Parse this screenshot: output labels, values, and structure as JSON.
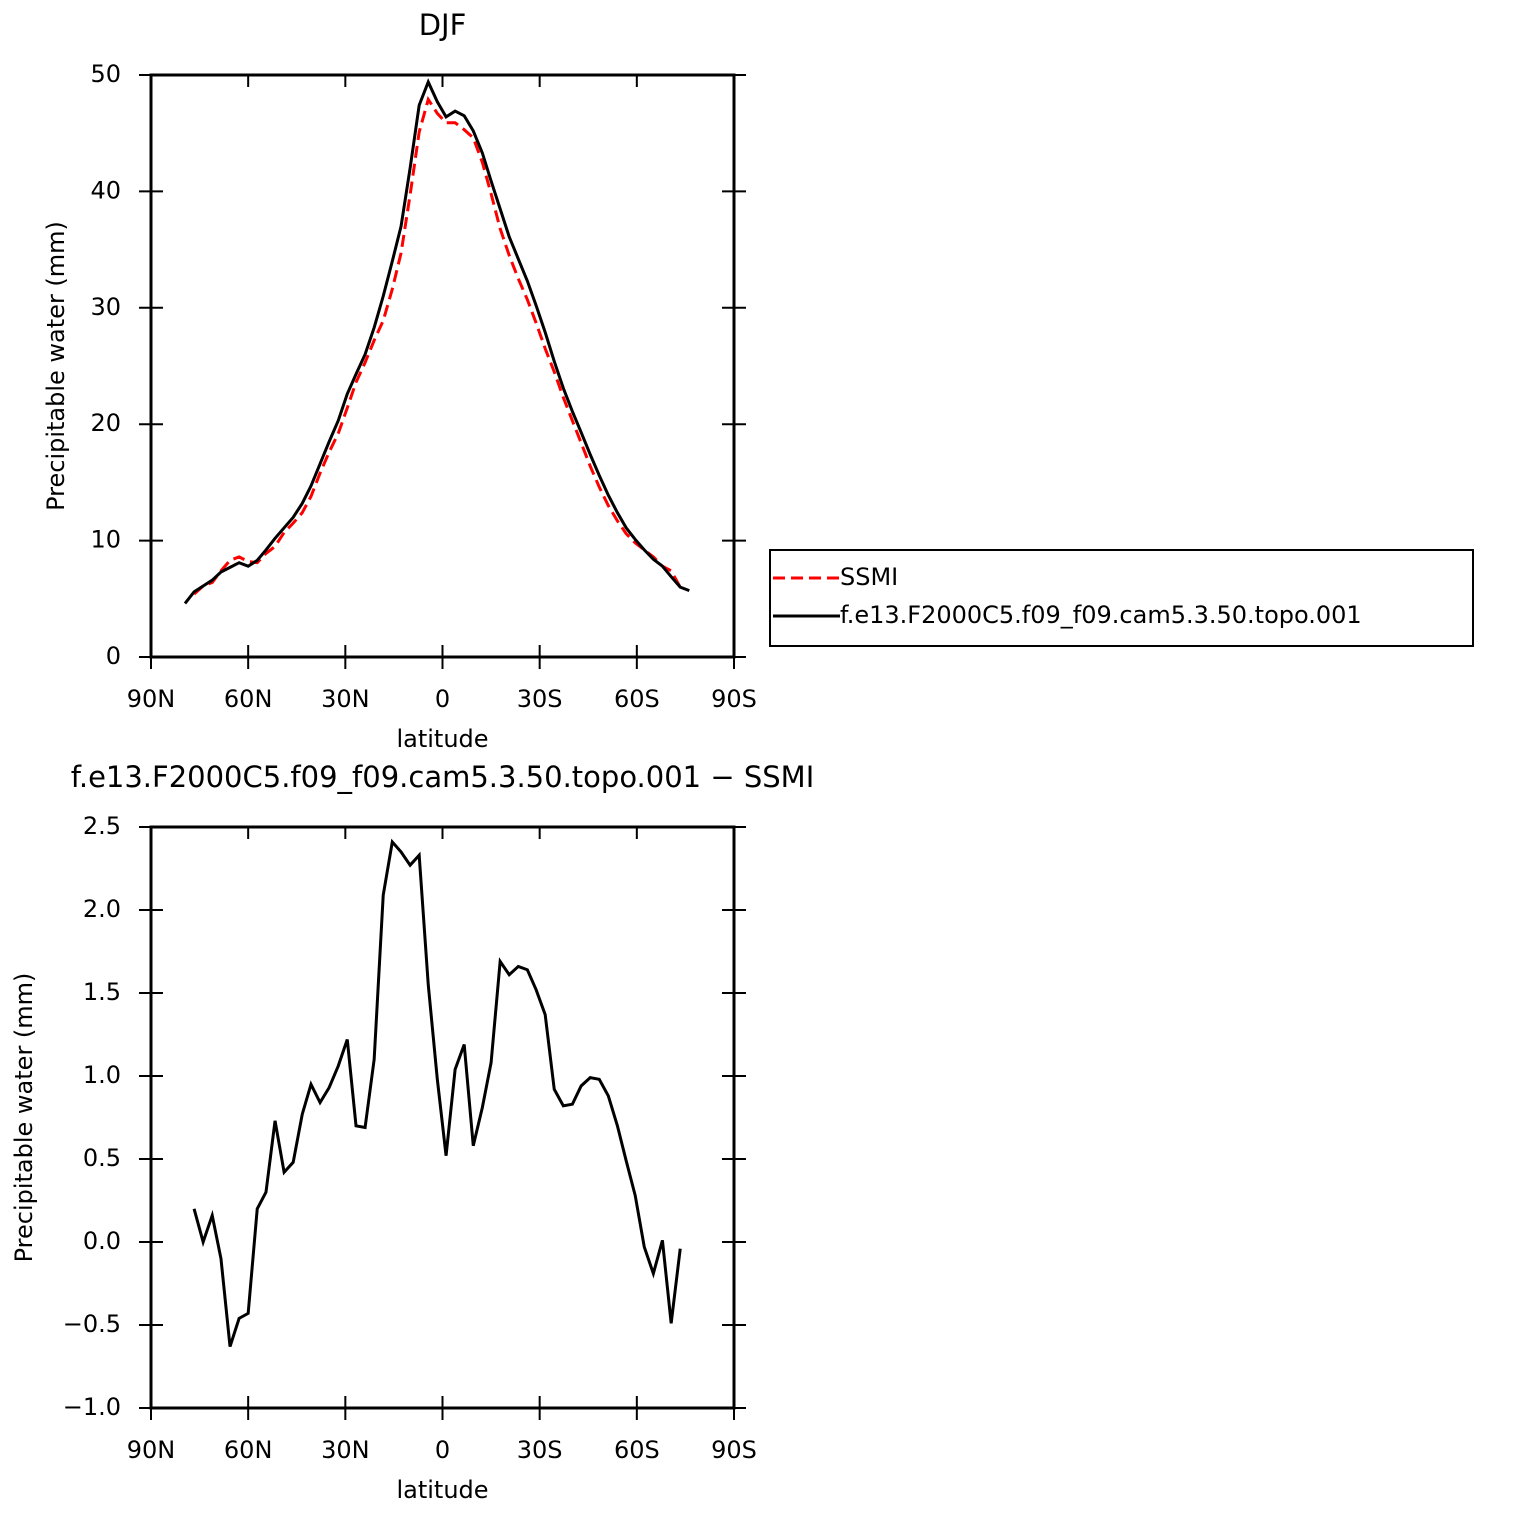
{
  "chart_data": [
    {
      "type": "line",
      "title": "DJF",
      "xlabel": "latitude",
      "ylabel": "Precipitable water (mm)",
      "xlim": [
        90,
        -90
      ],
      "xticks": [
        {
          "value": 90,
          "label": "90N"
        },
        {
          "value": 60,
          "label": "60N"
        },
        {
          "value": 30,
          "label": "30N"
        },
        0,
        {
          "value": -30,
          "label": "30S"
        },
        {
          "value": -60,
          "label": "60S"
        },
        {
          "value": -90,
          "label": "90S"
        }
      ],
      "ylim": [
        0,
        50
      ],
      "yticks": [
        0,
        10,
        20,
        30,
        40,
        50
      ],
      "legend": "right",
      "x": [
        79.5,
        76.7,
        73.9,
        71.1,
        68.4,
        65.6,
        62.8,
        60.0,
        57.2,
        54.5,
        51.7,
        48.9,
        46.1,
        43.3,
        40.6,
        37.8,
        35.0,
        32.2,
        29.4,
        26.7,
        23.9,
        21.1,
        18.3,
        15.5,
        12.8,
        10.0,
        7.2,
        4.4,
        1.6,
        -1.1,
        -3.9,
        -6.7,
        -9.5,
        -12.3,
        -15.0,
        -17.8,
        -20.6,
        -23.4,
        -26.2,
        -28.9,
        -31.7,
        -34.5,
        -37.3,
        -40.1,
        -42.8,
        -45.6,
        -48.4,
        -51.2,
        -54.0,
        -56.7,
        -59.5,
        -62.3,
        -65.1,
        -67.9,
        -70.6,
        -73.4,
        -76.2
      ],
      "series": [
        {
          "name": "SSMI",
          "color": "#ff0000",
          "dash": true,
          "values": [
            null,
            5.4,
            6.1,
            6.4,
            7.4,
            8.3,
            8.6,
            8.2,
            8.1,
            8.9,
            9.5,
            10.7,
            11.5,
            12.4,
            13.8,
            15.8,
            17.6,
            19.2,
            21.4,
            23.6,
            25.3,
            27.2,
            28.9,
            31.6,
            34.7,
            39.7,
            45.1,
            47.9,
            46.7,
            45.9,
            45.9,
            45.3,
            44.6,
            42.5,
            39.8,
            36.8,
            34.5,
            32.5,
            30.7,
            28.7,
            26.5,
            24.5,
            22.3,
            20.3,
            18.4,
            16.4,
            14.6,
            13.0,
            11.7,
            10.6,
            9.8,
            9.2,
            8.6,
            7.8,
            7.4,
            6.0,
            null
          ]
        },
        {
          "name": "f.e13.F2000C5.f09_f09.cam5.3.50.topo.001",
          "color": "#000000",
          "dash": false,
          "values": [
            4.6,
            5.6,
            6.1,
            6.6,
            7.3,
            7.7,
            8.1,
            7.8,
            8.3,
            9.2,
            10.2,
            11.1,
            12.0,
            13.2,
            14.7,
            16.6,
            18.5,
            20.3,
            22.6,
            24.3,
            26.0,
            28.3,
            31.0,
            34.0,
            37.0,
            42.0,
            47.4,
            49.4,
            47.7,
            46.4,
            46.9,
            46.5,
            45.2,
            43.3,
            40.9,
            38.5,
            36.1,
            34.2,
            32.3,
            30.2,
            27.9,
            25.4,
            23.1,
            21.1,
            19.3,
            17.4,
            15.6,
            13.9,
            12.4,
            11.1,
            10.1,
            9.2,
            8.4,
            7.8,
            6.9,
            6.0,
            5.7
          ]
        }
      ]
    },
    {
      "type": "line",
      "title": "f.e13.F2000C5.f09_f09.cam5.3.50.topo.001 − SSMI",
      "xlabel": "latitude",
      "ylabel": "Precipitable water (mm)",
      "xlim": [
        90,
        -90
      ],
      "xticks": [
        {
          "value": 90,
          "label": "90N"
        },
        {
          "value": 60,
          "label": "60N"
        },
        {
          "value": 30,
          "label": "30N"
        },
        0,
        {
          "value": -30,
          "label": "30S"
        },
        {
          "value": -60,
          "label": "60S"
        },
        {
          "value": -90,
          "label": "90S"
        }
      ],
      "ylim": [
        -1,
        2.5
      ],
      "yticks": [
        {
          "value": -1,
          "label": "−1.0"
        },
        {
          "value": -0.5,
          "label": "−0.5"
        },
        {
          "value": 0,
          "label": "0.0"
        },
        0.5,
        {
          "value": 1,
          "label": "1.0"
        },
        1.5,
        {
          "value": 2,
          "label": "2.0"
        },
        2.5
      ],
      "x": [
        76.7,
        73.9,
        71.1,
        68.4,
        65.6,
        62.8,
        60.0,
        57.2,
        54.5,
        51.7,
        48.9,
        46.1,
        43.3,
        40.6,
        37.8,
        35.0,
        32.2,
        29.4,
        26.7,
        23.9,
        21.1,
        18.3,
        15.5,
        12.8,
        10.0,
        7.2,
        4.4,
        1.6,
        -1.1,
        -3.9,
        -6.7,
        -9.5,
        -12.3,
        -15.0,
        -17.8,
        -20.6,
        -23.4,
        -26.2,
        -28.9,
        -31.7,
        -34.5,
        -37.3,
        -40.1,
        -42.8,
        -45.6,
        -48.4,
        -51.2,
        -54.0,
        -56.7,
        -59.5,
        -62.3,
        -65.1,
        -67.9,
        -70.6,
        -73.4
      ],
      "color": "#000000",
      "values": [
        0.2,
        0.0,
        0.16,
        -0.1,
        -0.63,
        -0.46,
        -0.43,
        0.2,
        0.3,
        0.73,
        0.42,
        0.48,
        0.77,
        0.95,
        0.84,
        0.93,
        1.06,
        1.22,
        0.7,
        0.69,
        1.1,
        2.09,
        2.41,
        2.35,
        2.27,
        2.33,
        1.55,
        0.98,
        0.52,
        1.04,
        1.19,
        0.58,
        0.81,
        1.08,
        1.69,
        1.61,
        1.66,
        1.64,
        1.52,
        1.37,
        0.92,
        0.82,
        0.83,
        0.94,
        0.99,
        0.98,
        0.88,
        0.7,
        0.49,
        0.28,
        -0.03,
        -0.19,
        0.01,
        -0.49,
        -0.04
      ]
    }
  ]
}
